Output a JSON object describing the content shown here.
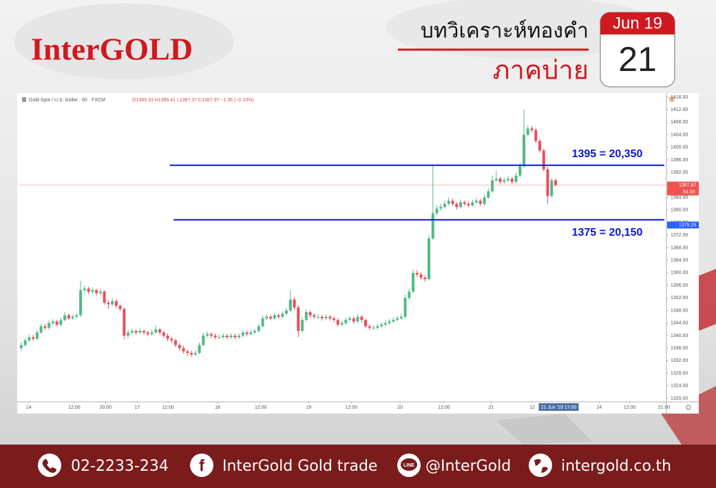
{
  "header": {
    "logo": "InterGOLD",
    "title": "บทวิเคราะห์ทองคำ",
    "subtitle": "ภาคบ่าย"
  },
  "date": {
    "month": "Jun 19",
    "day": "21"
  },
  "footer": {
    "phone": "02-2233-234",
    "facebook": "InterGold Gold trade",
    "line": "@InterGold",
    "website": "intergold.co.th"
  },
  "chart_data": {
    "type": "candlestick",
    "title": "Gold Spot / U.S. Dollar · 60 · FXCM",
    "subtitle": "O1389.33 H1389.41 L1387.37 C1387.97 −1.36 (−0.10%)",
    "up_color": "#53b987",
    "down_color": "#eb4d5c",
    "xlim": [
      -0.5,
      163
    ],
    "xticks": [
      {
        "value": 1.9,
        "label": "14"
      },
      {
        "value": 13.4,
        "label": "12:00"
      },
      {
        "value": 21.3,
        "label": "20:00"
      },
      {
        "value": 29.3,
        "label": "17"
      },
      {
        "value": 37.1,
        "label": "12:00"
      },
      {
        "value": 49.6,
        "label": "18"
      },
      {
        "value": 60.5,
        "label": "12:00"
      },
      {
        "value": 72.6,
        "label": "19"
      },
      {
        "value": 83.4,
        "label": "12:00"
      },
      {
        "value": 95.7,
        "label": "20"
      },
      {
        "value": 106.8,
        "label": "12:00"
      },
      {
        "value": 118.7,
        "label": "21"
      },
      {
        "value": 129.1,
        "label": "12"
      },
      {
        "value": 146,
        "label": "24"
      },
      {
        "value": 153.7,
        "label": "12:00"
      },
      {
        "value": 162.4,
        "label": "21:00"
      }
    ],
    "x_marker": {
      "value": 135.6,
      "label": "21 Jun '19   17:00"
    },
    "ylim": [
      1318.9,
      1417.3
    ],
    "yticks": [
      {
        "value": 1416,
        "label": "1416.00"
      },
      {
        "value": 1412,
        "label": "1412.00"
      },
      {
        "value": 1408,
        "label": "1408.00"
      },
      {
        "value": 1404,
        "label": "1404.00"
      },
      {
        "value": 1400,
        "label": "1400.00"
      },
      {
        "value": 1396,
        "label": "1396.00"
      },
      {
        "value": 1392,
        "label": "1392.00"
      },
      {
        "value": 1388,
        "label": "1388.00"
      },
      {
        "value": 1384,
        "label": "1384.00"
      },
      {
        "value": 1380,
        "label": "1380.00"
      },
      {
        "value": 1376,
        "label": "1376.00"
      },
      {
        "value": 1372,
        "label": "1372.00"
      },
      {
        "value": 1368,
        "label": "1368.00"
      },
      {
        "value": 1364,
        "label": "1364.00"
      },
      {
        "value": 1360,
        "label": "1360.00"
      },
      {
        "value": 1356,
        "label": "1356.00"
      },
      {
        "value": 1352,
        "label": "1352.00"
      },
      {
        "value": 1348,
        "label": "1348.00"
      },
      {
        "value": 1344,
        "label": "1344.00"
      },
      {
        "value": 1340,
        "label": "1340.00"
      },
      {
        "value": 1336,
        "label": "1336.00"
      },
      {
        "value": 1332,
        "label": "1332.00"
      },
      {
        "value": 1328,
        "label": "1328.00"
      },
      {
        "value": 1324,
        "label": "1324.00"
      },
      {
        "value": 1320,
        "label": "1320.00"
      }
    ],
    "levels": [
      {
        "y": 1394.3,
        "x_start": 37.5,
        "label": "1395 = 20,350",
        "color": "#0a14d8"
      },
      {
        "y": 1376.9,
        "x_start": 38.5,
        "label": "1375 = 20,150",
        "color": "#0a14d8"
      }
    ],
    "price_tags": [
      {
        "value": 1387.97,
        "label": "1387.97",
        "color": "#ef5350"
      },
      {
        "value": 1375.25,
        "label": "1375.25",
        "color": "#2962ff"
      }
    ],
    "countdown": "54:30",
    "candles": [
      [
        1336,
        1337.8,
        1335.2,
        1337
      ],
      [
        1337,
        1339.2,
        1336.5,
        1338.5
      ],
      [
        1338.5,
        1340.3,
        1338,
        1339.5
      ],
      [
        1339.5,
        1340.2,
        1338.3,
        1339
      ],
      [
        1339,
        1341.8,
        1338.6,
        1341
      ],
      [
        1341,
        1343.8,
        1340.5,
        1343
      ],
      [
        1343,
        1343.7,
        1341.8,
        1342.5
      ],
      [
        1342.5,
        1344.8,
        1342,
        1344
      ],
      [
        1344,
        1345.2,
        1343.4,
        1344.5
      ],
      [
        1344.5,
        1345.1,
        1343,
        1343.5
      ],
      [
        1343.5,
        1345.8,
        1343,
        1345
      ],
      [
        1345,
        1347.5,
        1344.6,
        1346.5
      ],
      [
        1346.5,
        1347,
        1345,
        1345.5
      ],
      [
        1345.5,
        1346.7,
        1345,
        1346
      ],
      [
        1346,
        1347.2,
        1345.4,
        1346.5
      ],
      [
        1346.5,
        1357.5,
        1346,
        1354.5
      ],
      [
        1354.5,
        1356,
        1353.8,
        1355
      ],
      [
        1355,
        1355.6,
        1353.2,
        1354
      ],
      [
        1354,
        1355.3,
        1353.5,
        1354.5
      ],
      [
        1354.5,
        1355,
        1352.8,
        1353.5
      ],
      [
        1353.5,
        1355,
        1353,
        1354
      ],
      [
        1354,
        1354.5,
        1349.8,
        1350.5
      ],
      [
        1350.5,
        1351.3,
        1348.5,
        1350
      ],
      [
        1350,
        1352,
        1349.4,
        1351
      ],
      [
        1351,
        1351.6,
        1348.8,
        1349.5
      ],
      [
        1349.5,
        1350,
        1347.8,
        1348.5
      ],
      [
        1348.5,
        1349,
        1338.8,
        1340
      ],
      [
        1340,
        1341.8,
        1339.3,
        1341
      ],
      [
        1341,
        1342.2,
        1340.4,
        1341.5
      ],
      [
        1341.5,
        1342,
        1340.3,
        1341
      ],
      [
        1341,
        1342.3,
        1340.5,
        1341.5
      ],
      [
        1341.5,
        1342,
        1340.2,
        1341
      ],
      [
        1341,
        1341.6,
        1339.8,
        1340.5
      ],
      [
        1340.5,
        1341.9,
        1340,
        1341
      ],
      [
        1341,
        1343.2,
        1340.6,
        1342
      ],
      [
        1342,
        1342.5,
        1340.3,
        1341
      ],
      [
        1341,
        1341.6,
        1339.3,
        1340
      ],
      [
        1340,
        1340.8,
        1338.2,
        1339
      ],
      [
        1339,
        1339.6,
        1337.7,
        1338.5
      ],
      [
        1338.5,
        1339,
        1336.3,
        1337
      ],
      [
        1337,
        1337.6,
        1335.2,
        1336
      ],
      [
        1336,
        1336.7,
        1334.3,
        1335
      ],
      [
        1335,
        1335.6,
        1333.6,
        1334.5
      ],
      [
        1334.5,
        1335.2,
        1333.2,
        1334
      ],
      [
        1334,
        1335.3,
        1333.5,
        1334.5
      ],
      [
        1334.5,
        1337.8,
        1334,
        1337
      ],
      [
        1337,
        1340.9,
        1336.5,
        1340
      ],
      [
        1340,
        1341.3,
        1339.4,
        1340.5
      ],
      [
        1340.5,
        1341,
        1339.2,
        1340
      ],
      [
        1340,
        1340.7,
        1338.8,
        1339.5
      ],
      [
        1339.5,
        1340.3,
        1338.9,
        1339.5
      ],
      [
        1339.5,
        1340.7,
        1339,
        1340
      ],
      [
        1340,
        1340.5,
        1338.8,
        1339.5
      ],
      [
        1339.5,
        1340.8,
        1339,
        1340
      ],
      [
        1340,
        1340.6,
        1338.9,
        1339.5
      ],
      [
        1339.5,
        1340.8,
        1339,
        1340
      ],
      [
        1340,
        1341.7,
        1339.5,
        1341
      ],
      [
        1341,
        1341.6,
        1339.8,
        1340.5
      ],
      [
        1340.5,
        1341.8,
        1340,
        1341
      ],
      [
        1341,
        1342.2,
        1340.5,
        1341.5
      ],
      [
        1341.5,
        1343.8,
        1341,
        1343
      ],
      [
        1343,
        1346.4,
        1342.5,
        1345.5
      ],
      [
        1345.5,
        1346.9,
        1345,
        1346
      ],
      [
        1346,
        1346.7,
        1344.8,
        1345.5
      ],
      [
        1345.5,
        1347.3,
        1345,
        1346.5
      ],
      [
        1346.5,
        1347,
        1345.3,
        1346
      ],
      [
        1346,
        1347.8,
        1345.5,
        1347
      ],
      [
        1347,
        1348.9,
        1346.5,
        1348
      ],
      [
        1348,
        1354.5,
        1347.4,
        1351.5
      ],
      [
        1351.5,
        1352.2,
        1348.3,
        1349
      ],
      [
        1349,
        1349.8,
        1339.5,
        1341.5
      ],
      [
        1341.5,
        1345.8,
        1341,
        1345
      ],
      [
        1345,
        1348.3,
        1344.5,
        1347.5
      ],
      [
        1347.5,
        1348,
        1345.8,
        1346.5
      ],
      [
        1346.5,
        1347.1,
        1345.3,
        1346
      ],
      [
        1346,
        1346.8,
        1345.3,
        1346
      ],
      [
        1346,
        1346.6,
        1344.8,
        1345.5
      ],
      [
        1345.5,
        1346.8,
        1345,
        1346
      ],
      [
        1346,
        1346.6,
        1344.9,
        1345.5
      ],
      [
        1345.5,
        1346,
        1344.3,
        1345
      ],
      [
        1345,
        1345.6,
        1342.8,
        1343.5
      ],
      [
        1343.5,
        1344.7,
        1343,
        1344
      ],
      [
        1344,
        1345.8,
        1343.5,
        1345
      ],
      [
        1345,
        1346.3,
        1344.5,
        1345.5
      ],
      [
        1345.5,
        1346,
        1343.8,
        1344.5
      ],
      [
        1344.5,
        1346.8,
        1344,
        1346
      ],
      [
        1346,
        1346.6,
        1344.3,
        1345
      ],
      [
        1345,
        1345.5,
        1342.3,
        1343
      ],
      [
        1343,
        1343.6,
        1341.8,
        1342.5
      ],
      [
        1342.5,
        1343.3,
        1341.9,
        1342.5
      ],
      [
        1342.5,
        1343.8,
        1342,
        1343
      ],
      [
        1343,
        1344.2,
        1342.5,
        1343.5
      ],
      [
        1343.5,
        1344.8,
        1343,
        1344
      ],
      [
        1344,
        1345.3,
        1343.5,
        1344.5
      ],
      [
        1344.5,
        1345.8,
        1344,
        1345
      ],
      [
        1345,
        1346.3,
        1344.5,
        1345.5
      ],
      [
        1345.5,
        1346.8,
        1345,
        1346
      ],
      [
        1346,
        1353,
        1345.5,
        1352
      ],
      [
        1352,
        1355,
        1351.4,
        1354
      ],
      [
        1354,
        1361,
        1353.5,
        1360
      ],
      [
        1360,
        1360.8,
        1358.7,
        1359.5
      ],
      [
        1359.5,
        1360.2,
        1357.8,
        1358.5
      ],
      [
        1358.5,
        1359.2,
        1357.2,
        1358
      ],
      [
        1358,
        1372,
        1357.5,
        1371
      ],
      [
        1371,
        1394,
        1370.5,
        1379
      ],
      [
        1379,
        1381.5,
        1378.4,
        1380.5
      ],
      [
        1380.5,
        1382,
        1379.8,
        1381
      ],
      [
        1381,
        1383,
        1380.4,
        1382
      ],
      [
        1382,
        1384,
        1381.3,
        1383
      ],
      [
        1383,
        1383.7,
        1381.3,
        1382
      ],
      [
        1382,
        1382.6,
        1380.2,
        1381
      ],
      [
        1381,
        1383.4,
        1380.5,
        1382.5
      ],
      [
        1382.5,
        1383.1,
        1381.3,
        1382
      ],
      [
        1382,
        1382.7,
        1380.8,
        1381.5
      ],
      [
        1381.5,
        1383.3,
        1381,
        1382.5
      ],
      [
        1382.5,
        1383.8,
        1382,
        1383
      ],
      [
        1383,
        1383.6,
        1381.2,
        1382
      ],
      [
        1382,
        1385,
        1381.5,
        1384
      ],
      [
        1384,
        1387,
        1383.5,
        1386
      ],
      [
        1386,
        1391,
        1385.5,
        1389.5
      ],
      [
        1389.5,
        1392.5,
        1389,
        1390
      ],
      [
        1390,
        1390.6,
        1388.2,
        1389
      ],
      [
        1389,
        1390.3,
        1388.4,
        1389.5
      ],
      [
        1389.5,
        1390.8,
        1389,
        1390
      ],
      [
        1390,
        1390.6,
        1388.2,
        1389
      ],
      [
        1389,
        1392,
        1388.5,
        1391
      ],
      [
        1391,
        1395,
        1390.4,
        1394
      ],
      [
        1394,
        1412,
        1393.5,
        1404
      ],
      [
        1404,
        1407,
        1403.4,
        1406
      ],
      [
        1406,
        1406.8,
        1404.7,
        1405.5
      ],
      [
        1405.5,
        1406.2,
        1401.3,
        1402
      ],
      [
        1402,
        1402.8,
        1398.3,
        1399
      ],
      [
        1399,
        1399.6,
        1392.3,
        1393
      ],
      [
        1393,
        1393.8,
        1382,
        1384.5
      ],
      [
        1384.5,
        1390.3,
        1384,
        1389.5
      ],
      [
        1389.5,
        1390.1,
        1387.5,
        1388
      ]
    ]
  }
}
